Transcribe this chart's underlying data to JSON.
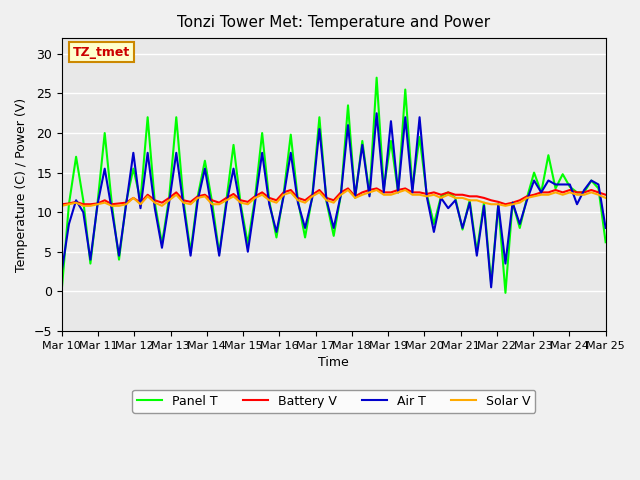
{
  "title": "Tonzi Tower Met: Temperature and Power",
  "xlabel": "Time",
  "ylabel": "Temperature (C) / Power (V)",
  "ylim": [
    -5,
    32
  ],
  "xlim": [
    0,
    15
  ],
  "xtick_labels": [
    "Mar 10",
    "Mar 11",
    "Mar 12",
    "Mar 13",
    "Mar 14",
    "Mar 15",
    "Mar 16",
    "Mar 17",
    "Mar 18",
    "Mar 19",
    "Mar 20",
    "Mar 21",
    "Mar 22",
    "Mar 23",
    "Mar 24",
    "Mar 25"
  ],
  "background_color": "#e8e8e8",
  "plot_bg_color": "#e8e8e8",
  "legend_labels": [
    "Panel T",
    "Battery V",
    "Air T",
    "Solar V"
  ],
  "legend_colors": [
    "#00ff00",
    "#ff0000",
    "#0000cc",
    "#ffaa00"
  ],
  "annotation_text": "TZ_tmet",
  "annotation_bg": "#ffffcc",
  "annotation_border": "#cc8800",
  "annotation_text_color": "#cc0000",
  "panel_t": [
    0.2,
    11.0,
    17.0,
    11.5,
    3.5,
    11.2,
    20.0,
    11.0,
    4.0,
    11.3,
    15.5,
    11.5,
    22.0,
    11.2,
    6.0,
    11.8,
    22.0,
    11.5,
    5.0,
    12.0,
    16.5,
    11.3,
    4.8,
    11.5,
    18.5,
    11.0,
    6.0,
    11.8,
    20.0,
    11.4,
    6.8,
    12.3,
    19.8,
    11.5,
    6.8,
    12.0,
    22.0,
    11.3,
    7.0,
    12.2,
    23.5,
    11.8,
    19.0,
    12.2,
    27.0,
    13.0,
    19.0,
    12.5,
    25.5,
    13.0,
    19.5,
    12.3,
    8.5,
    12.0,
    12.5,
    11.8,
    7.8,
    11.5,
    5.0,
    11.2,
    1.0,
    11.0,
    -0.2,
    11.2,
    8.0,
    11.8,
    15.0,
    12.5,
    17.2,
    13.0,
    14.8,
    13.2,
    12.5,
    12.5,
    14.0,
    13.0,
    6.2
  ],
  "battery_v": [
    11.0,
    11.1,
    11.3,
    11.0,
    11.0,
    11.1,
    11.5,
    11.0,
    11.1,
    11.2,
    11.8,
    11.2,
    12.2,
    11.5,
    11.2,
    11.8,
    12.5,
    11.5,
    11.3,
    12.0,
    12.2,
    11.5,
    11.2,
    11.8,
    12.3,
    11.5,
    11.3,
    12.0,
    12.5,
    11.8,
    11.5,
    12.5,
    12.8,
    11.8,
    11.5,
    12.2,
    12.8,
    11.8,
    11.5,
    12.5,
    13.0,
    12.0,
    12.5,
    12.8,
    13.0,
    12.5,
    12.5,
    12.8,
    13.0,
    12.5,
    12.5,
    12.3,
    12.5,
    12.2,
    12.5,
    12.2,
    12.2,
    12.0,
    12.0,
    11.8,
    11.5,
    11.3,
    11.0,
    11.2,
    11.5,
    12.0,
    12.2,
    12.5,
    12.5,
    12.8,
    12.5,
    12.8,
    12.5,
    12.5,
    12.8,
    12.5,
    12.2
  ],
  "air_t": [
    2.5,
    8.5,
    11.5,
    10.0,
    4.0,
    11.0,
    15.5,
    10.2,
    4.5,
    11.0,
    17.5,
    10.5,
    17.5,
    10.5,
    5.5,
    11.2,
    17.5,
    10.8,
    4.5,
    11.5,
    15.5,
    10.2,
    4.5,
    11.0,
    15.5,
    10.5,
    5.0,
    11.2,
    17.5,
    11.0,
    7.5,
    12.0,
    17.5,
    11.2,
    8.0,
    11.8,
    20.5,
    11.5,
    8.0,
    12.2,
    21.0,
    12.0,
    18.5,
    12.0,
    22.5,
    12.5,
    21.5,
    12.5,
    22.0,
    12.5,
    22.0,
    12.0,
    7.5,
    11.8,
    10.5,
    11.5,
    8.0,
    11.2,
    4.5,
    10.8,
    0.5,
    11.0,
    3.5,
    11.2,
    8.5,
    11.5,
    14.0,
    12.5,
    14.0,
    13.5,
    13.5,
    13.5,
    11.0,
    12.8,
    14.0,
    13.5,
    8.0
  ],
  "solar_v": [
    10.8,
    11.0,
    11.2,
    10.8,
    10.8,
    11.0,
    11.2,
    10.8,
    10.8,
    11.0,
    11.8,
    11.0,
    12.0,
    11.2,
    10.8,
    11.5,
    12.2,
    11.2,
    11.0,
    11.8,
    12.0,
    11.0,
    11.0,
    11.5,
    12.0,
    11.2,
    11.0,
    11.8,
    12.2,
    11.5,
    11.2,
    12.2,
    12.5,
    11.5,
    11.2,
    12.0,
    12.5,
    11.5,
    11.2,
    12.2,
    12.8,
    11.8,
    12.2,
    12.5,
    12.8,
    12.2,
    12.2,
    12.5,
    12.8,
    12.2,
    12.2,
    12.0,
    12.2,
    11.8,
    12.2,
    11.8,
    11.8,
    11.5,
    11.5,
    11.2,
    11.0,
    11.0,
    10.8,
    11.0,
    11.2,
    11.8,
    12.0,
    12.2,
    12.2,
    12.5,
    12.2,
    12.5,
    12.2,
    12.2,
    12.5,
    12.2,
    11.8
  ]
}
